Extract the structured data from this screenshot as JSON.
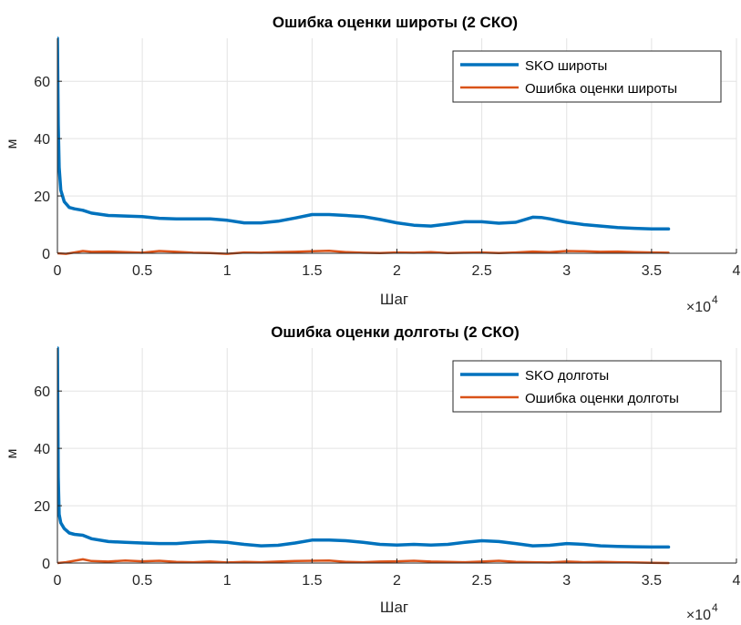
{
  "chart_data": [
    {
      "type": "line",
      "title": "Ошибка оценки широты (2 СКО)",
      "xlabel": "Шаг",
      "ylabel": "м",
      "x_exponent_label": "×10",
      "x_exponent": "4",
      "xlim": [
        0,
        4
      ],
      "ylim": [
        0,
        75
      ],
      "xticks": [
        0,
        0.5,
        1,
        1.5,
        2,
        2.5,
        3,
        3.5,
        4
      ],
      "xtick_labels": [
        "0",
        "0.5",
        "1",
        "1.5",
        "2",
        "2.5",
        "3",
        "3.5",
        "4"
      ],
      "yticks": [
        0,
        20,
        40,
        60
      ],
      "ytick_labels": [
        "0",
        "20",
        "40",
        "60"
      ],
      "grid": true,
      "legend_position": "top-right",
      "series": [
        {
          "name": "SKO широты",
          "color": "#0072BD",
          "x": [
            0,
            0.005,
            0.01,
            0.02,
            0.04,
            0.07,
            0.1,
            0.15,
            0.2,
            0.3,
            0.4,
            0.5,
            0.6,
            0.7,
            0.8,
            0.9,
            1.0,
            1.1,
            1.2,
            1.3,
            1.4,
            1.5,
            1.6,
            1.7,
            1.8,
            1.9,
            2.0,
            2.1,
            2.2,
            2.3,
            2.4,
            2.5,
            2.6,
            2.7,
            2.8,
            2.85,
            2.9,
            3.0,
            3.1,
            3.2,
            3.3,
            3.4,
            3.5,
            3.6
          ],
          "y": [
            75,
            45,
            30,
            22,
            18,
            16,
            15.5,
            15,
            14,
            13.2,
            13,
            12.8,
            12.2,
            12,
            12,
            12,
            11.5,
            10.6,
            10.6,
            11.2,
            12.3,
            13.5,
            13.5,
            13.2,
            12.8,
            11.8,
            10.6,
            9.8,
            9.5,
            10.2,
            11,
            11,
            10.5,
            10.8,
            12.6,
            12.5,
            12,
            10.8,
            10,
            9.5,
            9,
            8.7,
            8.5,
            8.5
          ]
        },
        {
          "name": "Ошибка оценки широты",
          "color": "#D95319",
          "x": [
            0,
            0.05,
            0.1,
            0.15,
            0.2,
            0.3,
            0.4,
            0.5,
            0.6,
            0.7,
            0.8,
            0.9,
            1.0,
            1.1,
            1.2,
            1.3,
            1.4,
            1.5,
            1.6,
            1.7,
            1.8,
            1.9,
            2.0,
            2.1,
            2.2,
            2.3,
            2.4,
            2.5,
            2.6,
            2.7,
            2.8,
            2.9,
            3.0,
            3.1,
            3.2,
            3.3,
            3.4,
            3.5,
            3.6
          ],
          "y": [
            0,
            -0.2,
            0.3,
            0.8,
            0.5,
            0.6,
            0.4,
            0.2,
            0.8,
            0.5,
            0.2,
            0.1,
            -0.2,
            0.3,
            0.2,
            0.4,
            0.5,
            0.7,
            0.9,
            0.4,
            0.2,
            0.1,
            0.3,
            0.2,
            0.4,
            0.1,
            0.2,
            0.3,
            0.1,
            0.3,
            0.6,
            0.4,
            0.8,
            0.7,
            0.5,
            0.6,
            0.4,
            0.3,
            0.2
          ]
        }
      ]
    },
    {
      "type": "line",
      "title": "Ошибка оценки долготы (2 СКО)",
      "xlabel": "Шаг",
      "ylabel": "м",
      "x_exponent_label": "×10",
      "x_exponent": "4",
      "xlim": [
        0,
        4
      ],
      "ylim": [
        0,
        75
      ],
      "xticks": [
        0,
        0.5,
        1,
        1.5,
        2,
        2.5,
        3,
        3.5,
        4
      ],
      "xtick_labels": [
        "0",
        "0.5",
        "1",
        "1.5",
        "2",
        "2.5",
        "3",
        "3.5",
        "4"
      ],
      "yticks": [
        0,
        20,
        40,
        60
      ],
      "ytick_labels": [
        "0",
        "20",
        "40",
        "60"
      ],
      "grid": true,
      "legend_position": "top-right",
      "series": [
        {
          "name": "SKO долготы",
          "color": "#0072BD",
          "x": [
            0,
            0.005,
            0.01,
            0.02,
            0.04,
            0.07,
            0.1,
            0.15,
            0.2,
            0.3,
            0.4,
            0.5,
            0.6,
            0.7,
            0.8,
            0.9,
            1.0,
            1.1,
            1.2,
            1.3,
            1.4,
            1.5,
            1.6,
            1.7,
            1.8,
            1.9,
            2.0,
            2.1,
            2.2,
            2.3,
            2.4,
            2.5,
            2.6,
            2.7,
            2.8,
            2.9,
            3.0,
            3.1,
            3.2,
            3.3,
            3.4,
            3.5,
            3.6
          ],
          "y": [
            75,
            30,
            17,
            14,
            12,
            10.5,
            10,
            9.7,
            8.5,
            7.5,
            7.2,
            7,
            6.8,
            6.8,
            7.2,
            7.5,
            7.2,
            6.5,
            6,
            6.2,
            7,
            8,
            8,
            7.8,
            7.2,
            6.5,
            6.3,
            6.5,
            6.3,
            6.5,
            7.2,
            7.8,
            7.5,
            6.8,
            6,
            6.2,
            6.8,
            6.5,
            6,
            5.8,
            5.7,
            5.6,
            5.6
          ]
        },
        {
          "name": "Ошибка оценки долготы",
          "color": "#D95319",
          "x": [
            0,
            0.05,
            0.1,
            0.15,
            0.2,
            0.3,
            0.4,
            0.5,
            0.6,
            0.7,
            0.8,
            0.9,
            1.0,
            1.1,
            1.2,
            1.3,
            1.4,
            1.5,
            1.6,
            1.7,
            1.8,
            1.9,
            2.0,
            2.1,
            2.2,
            2.3,
            2.4,
            2.5,
            2.6,
            2.7,
            2.8,
            2.9,
            3.0,
            3.1,
            3.2,
            3.3,
            3.4,
            3.5,
            3.6
          ],
          "y": [
            0,
            0.3,
            0.8,
            1.3,
            0.7,
            0.5,
            0.9,
            0.6,
            0.8,
            0.4,
            0.3,
            0.5,
            0.2,
            0.4,
            0.3,
            0.5,
            0.7,
            0.8,
            0.9,
            0.4,
            0.3,
            0.5,
            0.6,
            0.8,
            0.5,
            0.4,
            0.3,
            0.5,
            0.8,
            0.4,
            0.3,
            0.2,
            0.5,
            0.3,
            0.4,
            0.3,
            0.2,
            0.1,
            0
          ]
        }
      ]
    }
  ]
}
